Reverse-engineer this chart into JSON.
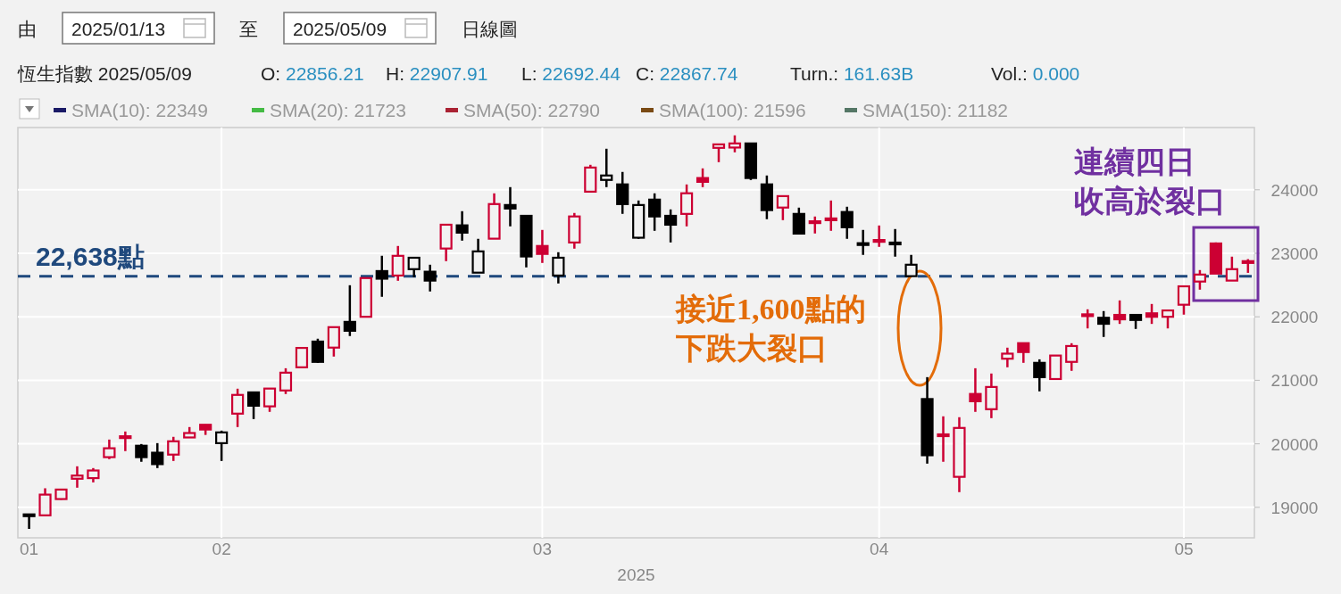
{
  "chart_data": {
    "type": "candlestick",
    "title": "恆生指數 2025/05/09",
    "xlabel": "2025",
    "categories": [
      "01",
      null,
      null,
      null,
      null,
      null,
      null,
      null,
      null,
      null,
      null,
      null,
      "02",
      null,
      null,
      null,
      null,
      null,
      null,
      null,
      null,
      null,
      null,
      null,
      null,
      null,
      null,
      null,
      null,
      null,
      null,
      null,
      "03",
      null,
      null,
      null,
      null,
      null,
      null,
      null,
      null,
      null,
      null,
      null,
      null,
      null,
      null,
      null,
      null,
      null,
      null,
      null,
      null,
      "04",
      null,
      null,
      null,
      null,
      null,
      null,
      null,
      null,
      null,
      null,
      null,
      null,
      null,
      null,
      null,
      null,
      null,
      null,
      "05",
      null,
      null,
      null,
      null
    ],
    "ohlc": [
      [
        18870,
        18890,
        18660,
        18880
      ],
      [
        18874,
        19300,
        18870,
        19200
      ],
      [
        19130,
        19290,
        19120,
        19280
      ],
      [
        19450,
        19646,
        19309,
        19500
      ],
      [
        19460,
        19618,
        19393,
        19580
      ],
      [
        19790,
        20067,
        19759,
        19930
      ],
      [
        20100,
        20194,
        19885,
        20110
      ],
      [
        19970,
        19997,
        19717,
        19790
      ],
      [
        19860,
        20011,
        19618,
        19680
      ],
      [
        19830,
        20110,
        19730,
        20040
      ],
      [
        20100,
        20264,
        20096,
        20170
      ],
      [
        20300,
        20306,
        20140,
        20225
      ],
      [
        20010,
        20208,
        19730,
        20180
      ],
      [
        20475,
        20868,
        20264,
        20770
      ],
      [
        20810,
        20812,
        20390,
        20600
      ],
      [
        20590,
        20870,
        20503,
        20870
      ],
      [
        20840,
        21190,
        20784,
        21120
      ],
      [
        21205,
        21514,
        21205,
        21510
      ],
      [
        21610,
        21655,
        21275,
        21290
      ],
      [
        21515,
        21837,
        21374,
        21837
      ],
      [
        21920,
        22497,
        21697,
        21780
      ],
      [
        22000,
        22610,
        22000,
        22610
      ],
      [
        22720,
        22961,
        22315,
        22600
      ],
      [
        22650,
        23115,
        22567,
        22960
      ],
      [
        22750,
        22933,
        22624,
        22930
      ],
      [
        22710,
        22820,
        22399,
        22570
      ],
      [
        23075,
        23452,
        22876,
        23450
      ],
      [
        23440,
        23663,
        23199,
        23325
      ],
      [
        22695,
        23228,
        22694,
        23030
      ],
      [
        23230,
        23944,
        23228,
        23775
      ],
      [
        23760,
        24042,
        23424,
        23705
      ],
      [
        23590,
        23593,
        22778,
        22950
      ],
      [
        23115,
        23368,
        22848,
        22990
      ],
      [
        22650,
        23017,
        22525,
        22930
      ],
      [
        23170,
        23635,
        23073,
        23580
      ],
      [
        23970,
        24393,
        23970,
        24350
      ],
      [
        24155,
        24646,
        24042,
        24225
      ],
      [
        24085,
        24281,
        23621,
        23775
      ],
      [
        23245,
        23831,
        23228,
        23760
      ],
      [
        23845,
        23944,
        23354,
        23580
      ],
      [
        23590,
        23691,
        23171,
        23450
      ],
      [
        23620,
        24084,
        23424,
        23945
      ],
      [
        24185,
        24337,
        24042,
        24125
      ],
      [
        24660,
        24716,
        24435,
        24715
      ],
      [
        24665,
        24857,
        24590,
        24730
      ],
      [
        24730,
        24730,
        24154,
        24185
      ],
      [
        24085,
        24225,
        23537,
        23680
      ],
      [
        23720,
        23902,
        23522,
        23900
      ],
      [
        23620,
        23719,
        23298,
        23310
      ],
      [
        23500,
        23579,
        23312,
        23480
      ],
      [
        23540,
        23831,
        23354,
        23530
      ],
      [
        23650,
        23733,
        23228,
        23410
      ],
      [
        23150,
        23368,
        22975,
        23140
      ],
      [
        23190,
        23438,
        23101,
        23200
      ],
      [
        23160,
        23382,
        22947,
        23150
      ],
      [
        22640,
        22975,
        22638,
        22820
      ],
      [
        20705,
        21050,
        19688,
        19820
      ],
      [
        20130,
        20433,
        19717,
        20140
      ],
      [
        19480,
        20419,
        19239,
        20250
      ],
      [
        20785,
        21190,
        20503,
        20670
      ],
      [
        20545,
        21107,
        20404,
        20895
      ],
      [
        21340,
        21514,
        21205,
        21420
      ],
      [
        21585,
        21585,
        21275,
        21445
      ],
      [
        21275,
        21330,
        20826,
        21050
      ],
      [
        21020,
        21390,
        21020,
        21390
      ],
      [
        21290,
        21584,
        21149,
        21540
      ],
      [
        22020,
        22118,
        21817,
        22030
      ],
      [
        21985,
        22090,
        21683,
        21890
      ],
      [
        22030,
        22258,
        21888,
        21960
      ],
      [
        22030,
        22030,
        21809,
        21950
      ],
      [
        22055,
        22202,
        21888,
        22000
      ],
      [
        22000,
        22104,
        21817,
        22100
      ],
      [
        22190,
        22483,
        22034,
        22480
      ],
      [
        22555,
        22736,
        22427,
        22665
      ],
      [
        23155,
        23171,
        22680,
        22680
      ],
      [
        22570,
        22947,
        22567,
        22750
      ],
      [
        22856,
        22908,
        22692,
        22868
      ]
    ],
    "colors": [
      "#000000",
      "#cc0033",
      "#cc0033",
      "#cc0033",
      "#cc0033",
      "#cc0033",
      "#cc0033",
      "#000000",
      "#000000",
      "#cc0033",
      "#cc0033",
      "#cc0033",
      "#000000",
      "#cc0033",
      "#000000",
      "#cc0033",
      "#cc0033",
      "#cc0033",
      "#000000",
      "#cc0033",
      "#000000",
      "#cc0033",
      "#000000",
      "#cc0033",
      "#000000",
      "#000000",
      "#cc0033",
      "#000000",
      "#000000",
      "#cc0033",
      "#000000",
      "#000000",
      "#cc0033",
      "#000000",
      "#cc0033",
      "#cc0033",
      "#000000",
      "#000000",
      "#000000",
      "#000000",
      "#000000",
      "#cc0033",
      "#cc0033",
      "#cc0033",
      "#cc0033",
      "#000000",
      "#000000",
      "#cc0033",
      "#000000",
      "#cc0033",
      "#cc0033",
      "#000000",
      "#000000",
      "#cc0033",
      "#000000",
      "#000000",
      "#000000",
      "#cc0033",
      "#cc0033",
      "#cc0033",
      "#cc0033",
      "#cc0033",
      "#cc0033",
      "#000000",
      "#cc0033",
      "#cc0033",
      "#cc0033",
      "#000000",
      "#cc0033",
      "#000000",
      "#cc0033",
      "#cc0033",
      "#cc0033",
      "#cc0033",
      "#cc0033",
      "#cc0033",
      "#cc0033"
    ],
    "ylim": [
      18520,
      24980
    ],
    "yticks": [
      19000,
      20000,
      21000,
      22000,
      23000,
      24000
    ],
    "grid": true,
    "ref_lines": [
      {
        "axis": "y",
        "value": 22638,
        "label": "22,638點",
        "color": "#1f497d",
        "line_style": "dashed"
      }
    ],
    "annotations": [
      "由",
      "2025/01/13",
      "至",
      "2025/05/09",
      "日線圖",
      "O: 22856.21",
      "H: 22907.91",
      "L: 22692.44",
      "C: 22867.74",
      "Turn.: 161.63B",
      "Vol.: 0.000",
      "SMA(10): 22349",
      "SMA(20): 21723",
      "SMA(50): 22790",
      "SMA(100): 21596",
      "SMA(150): 21182",
      "接近1,600點的",
      "下跌大裂口",
      "連續四日",
      "收高於裂口"
    ]
  }
}
